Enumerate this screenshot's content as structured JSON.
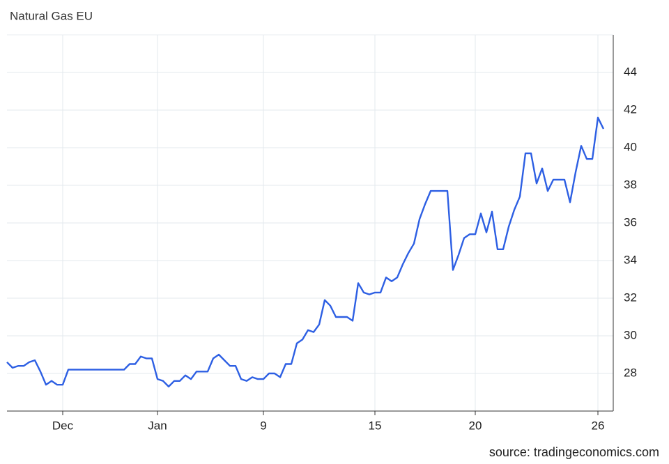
{
  "chart_data": {
    "type": "line",
    "title": "Natural Gas EU",
    "source": "source: tradingeconomics.com",
    "categories": [
      null,
      null,
      null,
      null,
      null,
      null,
      null,
      null,
      null,
      null,
      "Dec",
      null,
      null,
      null,
      null,
      null,
      null,
      null,
      null,
      null,
      null,
      null,
      null,
      null,
      null,
      null,
      null,
      "Jan",
      null,
      null,
      null,
      null,
      null,
      null,
      null,
      null,
      null,
      null,
      null,
      null,
      null,
      null,
      null,
      null,
      null,
      null,
      "9",
      null,
      null,
      null,
      null,
      null,
      null,
      null,
      null,
      null,
      null,
      null,
      null,
      null,
      null,
      null,
      null,
      null,
      null,
      null,
      "15",
      null,
      null,
      null,
      null,
      null,
      null,
      null,
      null,
      null,
      null,
      null,
      null,
      null,
      null,
      null,
      null,
      null,
      "20",
      null,
      null,
      null,
      null,
      null,
      null,
      null,
      null,
      null,
      null,
      null,
      null,
      null,
      null,
      null,
      null,
      null,
      null,
      null,
      null,
      null,
      "26",
      null
    ],
    "values": [
      28.6,
      28.3,
      28.4,
      28.4,
      28.6,
      28.7,
      28.1,
      27.4,
      27.6,
      27.4,
      27.4,
      28.2,
      28.2,
      28.2,
      28.2,
      28.2,
      28.2,
      28.2,
      28.2,
      28.2,
      28.2,
      28.2,
      28.5,
      28.5,
      28.9,
      28.8,
      28.8,
      27.7,
      27.6,
      27.3,
      27.6,
      27.6,
      27.9,
      27.7,
      28.1,
      28.1,
      28.1,
      28.8,
      29.0,
      28.7,
      28.4,
      28.4,
      27.7,
      27.6,
      27.8,
      27.7,
      27.7,
      28.0,
      28.0,
      27.8,
      28.5,
      28.5,
      29.6,
      29.8,
      30.3,
      30.2,
      30.6,
      31.9,
      31.6,
      31.0,
      31.0,
      31.0,
      30.8,
      32.8,
      32.3,
      32.2,
      32.3,
      32.3,
      33.1,
      32.9,
      33.1,
      33.8,
      34.4,
      34.9,
      36.2,
      37.0,
      37.7,
      37.7,
      37.7,
      37.7,
      33.5,
      34.3,
      35.2,
      35.4,
      35.4,
      36.5,
      35.5,
      36.6,
      34.6,
      34.6,
      35.8,
      36.7,
      37.4,
      39.7,
      39.7,
      38.1,
      38.9,
      37.7,
      38.3,
      38.3,
      38.3,
      37.1,
      38.7,
      40.1,
      39.4,
      39.4,
      41.6,
      41.0
    ],
    "color": "#2d5fe3",
    "ylim": [
      26,
      46
    ],
    "yticks": [
      28,
      30,
      32,
      34,
      36,
      38,
      40,
      42,
      44
    ],
    "grid": true
  }
}
